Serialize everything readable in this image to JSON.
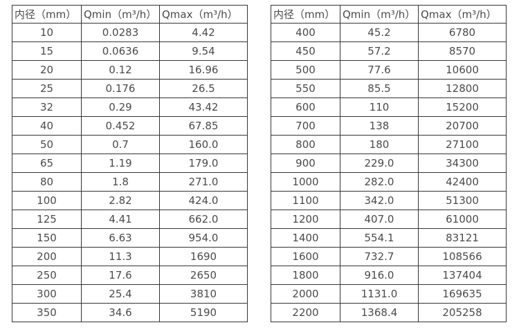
{
  "page": {
    "background_color": "#ffffff",
    "text_color": "#4a4a4a",
    "border_color": "#333333"
  },
  "tables": [
    {
      "name": "small-diameter-flow-table",
      "headers": [
        "内径（mm）",
        "Qmin（m³/h）",
        "Qmax（m³/h）"
      ],
      "rows": [
        [
          "10",
          "0.0283",
          "4.42"
        ],
        [
          "15",
          "0.0636",
          "9.54"
        ],
        [
          "20",
          "0.12",
          "16.96"
        ],
        [
          "25",
          "0.176",
          "26.5"
        ],
        [
          "32",
          "0.29",
          "43.42"
        ],
        [
          "40",
          "0.452",
          "67.85"
        ],
        [
          "50",
          "0.7",
          "160.0"
        ],
        [
          "65",
          "1.19",
          "179.0"
        ],
        [
          "80",
          "1.8",
          "271.0"
        ],
        [
          "100",
          "2.82",
          "424.0"
        ],
        [
          "125",
          "4.41",
          "662.0"
        ],
        [
          "150",
          "6.63",
          "954.0"
        ],
        [
          "200",
          "11.3",
          "1690"
        ],
        [
          "250",
          "17.6",
          "2650"
        ],
        [
          "300",
          "25.4",
          "3810"
        ],
        [
          "350",
          "34.6",
          "5190"
        ]
      ]
    },
    {
      "name": "large-diameter-flow-table",
      "headers": [
        "内径（mm）",
        "Qmin（m³/h）",
        "Qmax（m³/h）"
      ],
      "rows": [
        [
          "400",
          "45.2",
          "6780"
        ],
        [
          "450",
          "57.2",
          "8570"
        ],
        [
          "500",
          "77.6",
          "10600"
        ],
        [
          "550",
          "85.5",
          "12800"
        ],
        [
          "600",
          "110",
          "15200"
        ],
        [
          "700",
          "138",
          "20700"
        ],
        [
          "800",
          "180",
          "27100"
        ],
        [
          "900",
          "229.0",
          "34300"
        ],
        [
          "1000",
          "282.0",
          "42400"
        ],
        [
          "1100",
          "342.0",
          "51300"
        ],
        [
          "1200",
          "407.0",
          "61000"
        ],
        [
          "1400",
          "554.1",
          "83121"
        ],
        [
          "1600",
          "732.7",
          "108566"
        ],
        [
          "1800",
          "916.0",
          "137404"
        ],
        [
          "2000",
          "1131.0",
          "169635"
        ],
        [
          "2200",
          "1368.4",
          "205258"
        ]
      ]
    }
  ]
}
